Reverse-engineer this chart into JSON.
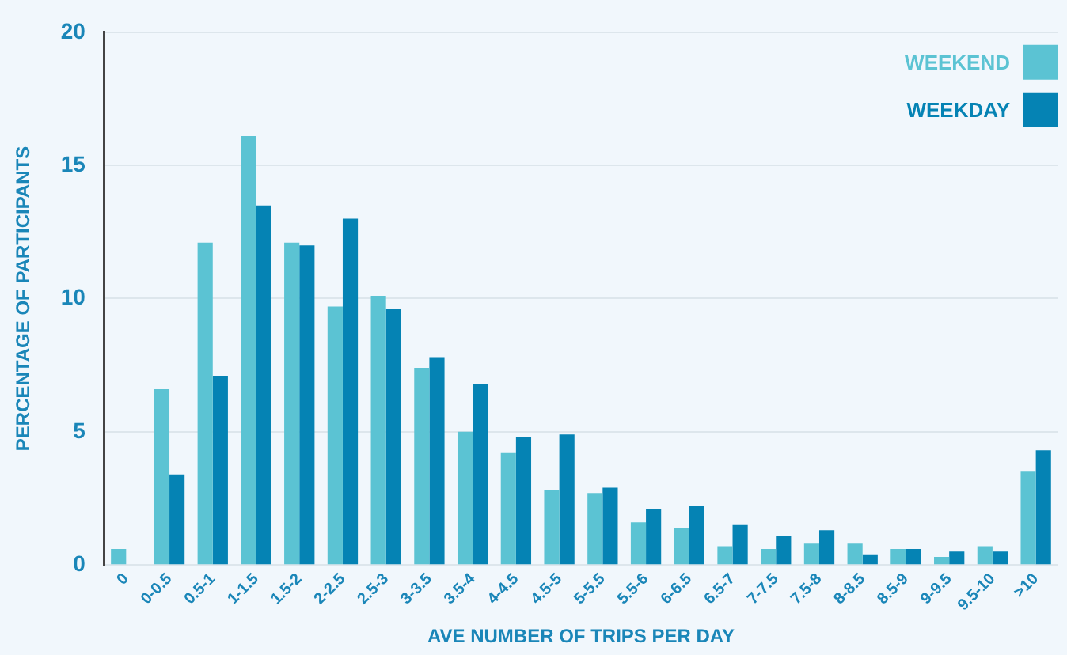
{
  "chart_data": {
    "type": "bar",
    "xlabel": "AVE NUMBER OF TRIPS PER DAY",
    "ylabel": "PERCENTAGE OF PARTICIPANTS",
    "categories": [
      "0",
      "0-0.5",
      "0.5-1",
      "1-1.5",
      "1.5-2",
      "2-2.5",
      "2.5-3",
      "3-3.5",
      "3.5-4",
      "4-4.5",
      "4.5-5",
      "5-5.5",
      "5.5-6",
      "6-6.5",
      "6.5-7",
      "7-7.5",
      "7.5-8",
      "8-8.5",
      "8.5-9",
      "9-9.5",
      "9.5-10",
      ">10"
    ],
    "series": [
      {
        "name": "WEEKEND",
        "color": "#5bc3d3",
        "values": [
          0.6,
          6.6,
          12.1,
          16.1,
          12.1,
          9.7,
          10.1,
          7.4,
          5.0,
          4.2,
          2.8,
          2.7,
          1.6,
          1.4,
          0.7,
          0.6,
          0.8,
          0.8,
          0.6,
          0.3,
          0.7,
          3.5
        ]
      },
      {
        "name": "WEEKDAY",
        "color": "#0583b4",
        "values": [
          0,
          3.4,
          7.1,
          13.5,
          12.0,
          13.0,
          9.6,
          7.8,
          6.8,
          4.8,
          4.9,
          2.9,
          2.1,
          2.2,
          1.5,
          1.1,
          1.3,
          0.4,
          0.6,
          0.5,
          0.5,
          4.3
        ]
      }
    ],
    "ylim": [
      0,
      20
    ],
    "yticks": [
      0,
      5,
      10,
      15,
      20
    ],
    "grid": "y",
    "legend": "top right"
  }
}
